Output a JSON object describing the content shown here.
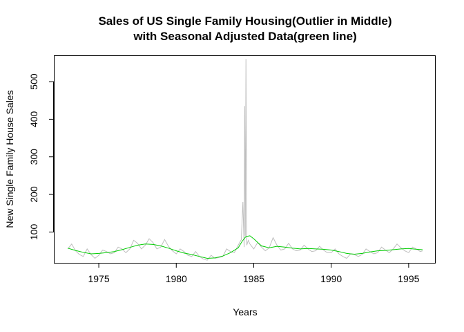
{
  "chart_data": {
    "type": "line",
    "title_line1": "Sales of US Single Family Housing(Outlier in Middle)",
    "title_line2": "with Seasonal Adjusted Data(green line)",
    "xlabel": "Years",
    "ylabel": "New Single Family House Sales",
    "xlim": [
      1972.1,
      1996.7
    ],
    "ylim": [
      18,
      570
    ],
    "xticks": [
      "1975",
      "1980",
      "1985",
      "1990",
      "1995"
    ],
    "yticks": [
      "100",
      "200",
      "300",
      "400",
      "500"
    ],
    "colors": {
      "raw": "#bebebe",
      "adjusted": "#00cc00"
    },
    "series": [
      {
        "role": "raw monthly sales (grey)",
        "x": [
          1973.0,
          1973.25,
          1973.5,
          1973.75,
          1974.0,
          1974.25,
          1974.5,
          1974.75,
          1975.0,
          1975.25,
          1975.5,
          1975.75,
          1976.0,
          1976.25,
          1976.5,
          1976.75,
          1977.0,
          1977.25,
          1977.5,
          1977.75,
          1978.0,
          1978.25,
          1978.5,
          1978.75,
          1979.0,
          1979.25,
          1979.5,
          1979.75,
          1980.0,
          1980.25,
          1980.5,
          1980.75,
          1981.0,
          1981.25,
          1981.5,
          1981.75,
          1982.0,
          1982.25,
          1982.5,
          1982.75,
          1983.0,
          1983.25,
          1983.5,
          1983.75,
          1984.0,
          1984.2,
          1984.3,
          1984.38,
          1984.42,
          1984.46,
          1984.5,
          1984.55,
          1984.65,
          1984.75,
          1985.0,
          1985.25,
          1985.5,
          1985.75,
          1986.0,
          1986.25,
          1986.5,
          1986.75,
          1987.0,
          1987.25,
          1987.5,
          1987.75,
          1988.0,
          1988.25,
          1988.5,
          1988.75,
          1989.0,
          1989.25,
          1989.5,
          1989.75,
          1990.0,
          1990.25,
          1990.5,
          1990.75,
          1991.0,
          1991.25,
          1991.5,
          1991.75,
          1992.0,
          1992.25,
          1992.5,
          1992.75,
          1993.0,
          1993.25,
          1993.5,
          1993.75,
          1994.0,
          1994.25,
          1994.5,
          1994.75,
          1995.0,
          1995.25,
          1995.5,
          1995.75,
          1995.9
        ],
        "y": [
          55,
          68,
          50,
          40,
          35,
          55,
          40,
          30,
          38,
          52,
          48,
          42,
          45,
          60,
          55,
          45,
          55,
          78,
          70,
          55,
          65,
          82,
          72,
          55,
          60,
          80,
          62,
          50,
          42,
          55,
          48,
          38,
          35,
          48,
          35,
          28,
          25,
          38,
          30,
          32,
          35,
          55,
          48,
          45,
          65,
          80,
          180,
          60,
          435,
          90,
          560,
          65,
          78,
          68,
          55,
          72,
          60,
          50,
          58,
          85,
          65,
          52,
          55,
          70,
          55,
          50,
          52,
          65,
          55,
          48,
          50,
          62,
          52,
          45,
          45,
          55,
          42,
          35,
          30,
          42,
          40,
          35,
          40,
          55,
          48,
          42,
          45,
          60,
          52,
          45,
          55,
          68,
          58,
          50,
          45,
          60,
          55,
          48,
          50
        ]
      },
      {
        "role": "seasonally adjusted (green)",
        "x": [
          1973.0,
          1973.5,
          1974.0,
          1974.5,
          1975.0,
          1975.5,
          1976.0,
          1976.5,
          1977.0,
          1977.5,
          1978.0,
          1978.5,
          1979.0,
          1979.5,
          1980.0,
          1980.5,
          1981.0,
          1981.5,
          1982.0,
          1982.5,
          1983.0,
          1983.5,
          1984.0,
          1984.25,
          1984.5,
          1984.75,
          1985.0,
          1985.5,
          1986.0,
          1986.5,
          1987.0,
          1987.5,
          1988.0,
          1988.5,
          1989.0,
          1989.5,
          1990.0,
          1990.5,
          1991.0,
          1991.5,
          1992.0,
          1992.5,
          1993.0,
          1993.5,
          1994.0,
          1994.5,
          1995.0,
          1995.5,
          1995.9
        ],
        "y": [
          57,
          51,
          46,
          42,
          43,
          45,
          48,
          53,
          59,
          65,
          68,
          67,
          63,
          57,
          50,
          44,
          40,
          35,
          30,
          31,
          36,
          45,
          58,
          75,
          88,
          90,
          82,
          63,
          58,
          62,
          60,
          57,
          55,
          56,
          55,
          54,
          52,
          48,
          43,
          41,
          43,
          47,
          50,
          51,
          53,
          55,
          56,
          54,
          53
        ]
      }
    ]
  }
}
